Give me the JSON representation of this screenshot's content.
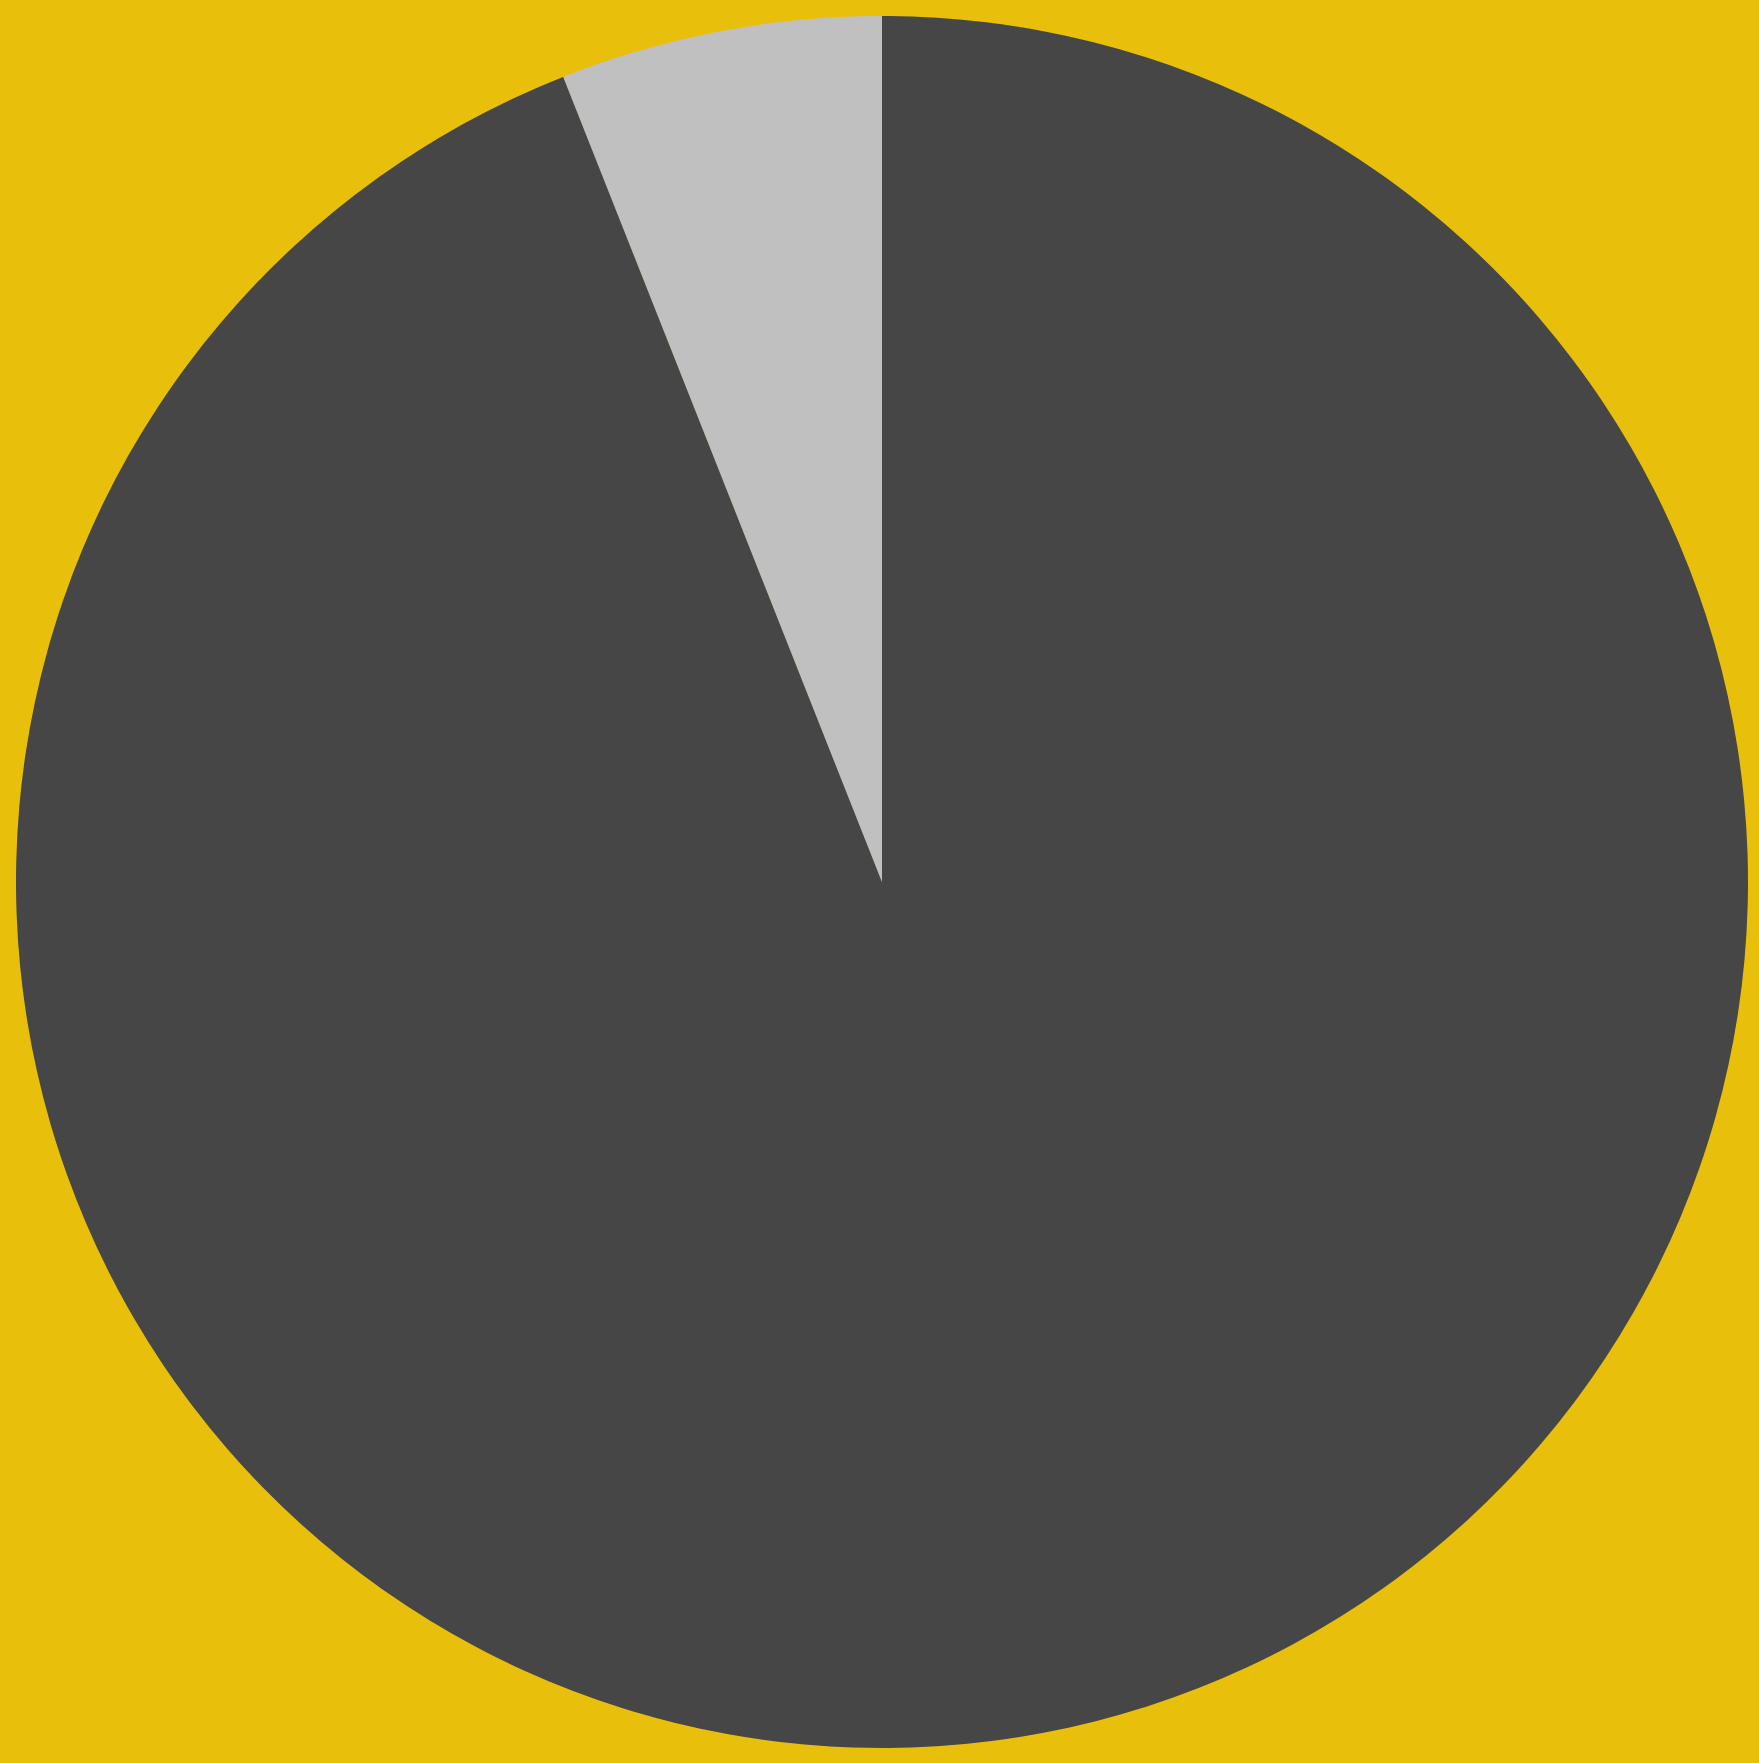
{
  "chart_data": {
    "type": "pie",
    "start_angle_degrees": 0,
    "direction": "clockwise",
    "slices": [
      {
        "value": 94,
        "color": "#464646"
      },
      {
        "value": 6,
        "color": "#C0C0C0"
      }
    ],
    "background_color": "#E8C00C",
    "legend": "none"
  }
}
